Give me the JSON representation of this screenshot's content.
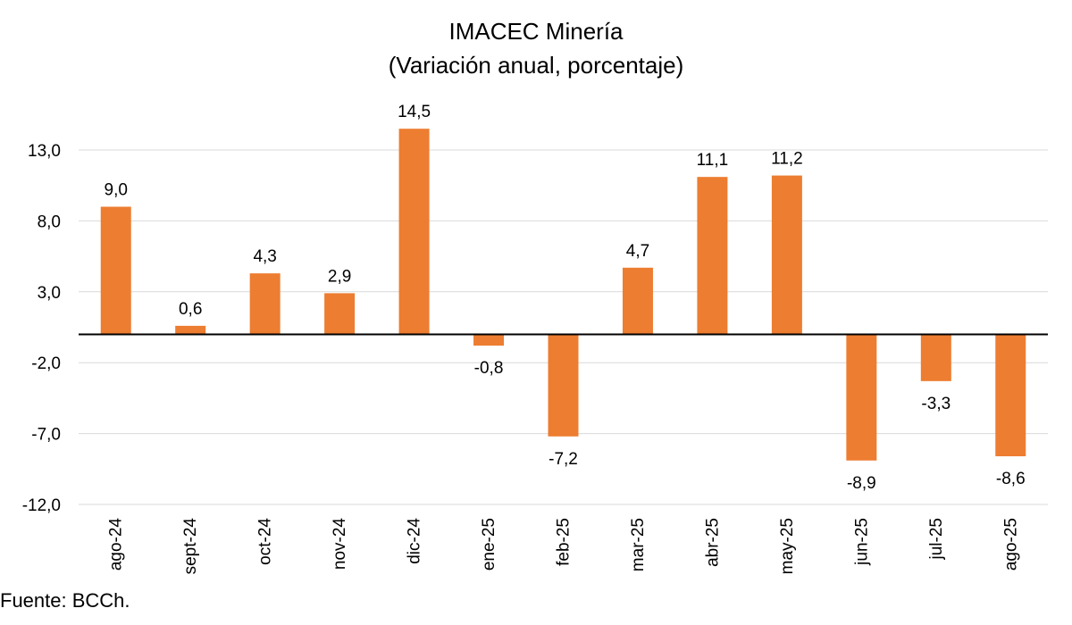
{
  "chart_data": {
    "type": "bar",
    "title": "IMACEC Minería",
    "subtitle": "(Variación anual, porcentaje)",
    "xlabel": "",
    "ylabel": "",
    "categories": [
      "ago-24",
      "sept-24",
      "oct-24",
      "nov-24",
      "dic-24",
      "ene-25",
      "feb-25",
      "mar-25",
      "abr-25",
      "may-25",
      "jun-25",
      "jul-25",
      "ago-25"
    ],
    "values": [
      9.0,
      0.6,
      4.3,
      2.9,
      14.5,
      -0.8,
      -7.2,
      4.7,
      11.1,
      11.2,
      -8.9,
      -3.3,
      -8.6
    ],
    "value_labels": [
      "9,0",
      "0,6",
      "4,3",
      "2,9",
      "14,5",
      "-0,8",
      "-7,2",
      "4,7",
      "11,1",
      "11,2",
      "-8,9",
      "-3,3",
      "-8,6"
    ],
    "yticks": [
      13,
      8,
      3,
      -2,
      -7,
      -12
    ],
    "ytick_labels": [
      "13,0",
      "8,0",
      "3,0",
      "-2,0",
      "-7,0",
      "-12,0"
    ],
    "ylim": [
      -12,
      13
    ],
    "grid": true,
    "legend": "none",
    "bar_color": "#ED7D31"
  },
  "footer": {
    "source": "Fuente: BCCh."
  }
}
